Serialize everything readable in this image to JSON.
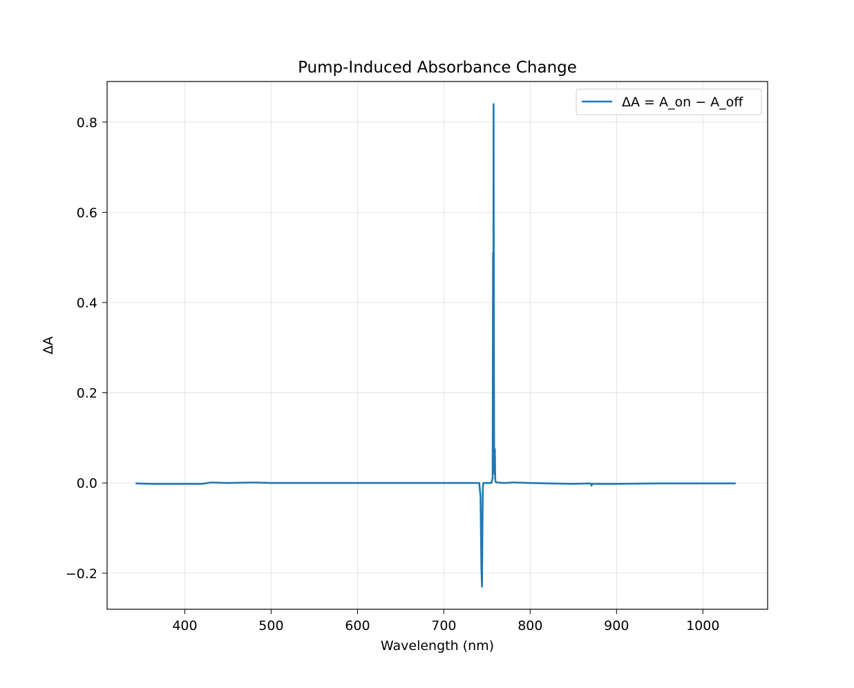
{
  "chart_data": {
    "type": "line",
    "title": "Pump-Induced Absorbance Change",
    "xlabel": "Wavelength (nm)",
    "ylabel": "ΔA",
    "xlim": [
      310,
      1075
    ],
    "ylim": [
      -0.28,
      0.89
    ],
    "x_ticks": [
      400,
      500,
      600,
      700,
      800,
      900,
      1000
    ],
    "x_tick_labels": [
      "400",
      "500",
      "600",
      "700",
      "800",
      "900",
      "1000"
    ],
    "y_ticks": [
      -0.2,
      0.0,
      0.2,
      0.4,
      0.6,
      0.8
    ],
    "y_tick_labels": [
      "−0.2",
      "0.0",
      "0.2",
      "0.4",
      "0.6",
      "0.8"
    ],
    "grid": true,
    "legend_position": "upper right",
    "series": [
      {
        "name": "ΔA = A_on − A_off",
        "color": "#1f77b4",
        "x": [
          343,
          360,
          380,
          400,
          420,
          430,
          450,
          480,
          500,
          550,
          600,
          650,
          700,
          735,
          741,
          742.5,
          743.5,
          744.2,
          744.7,
          745.2,
          745.8,
          746.5,
          748,
          752,
          755,
          756.5,
          757,
          757.3,
          757.6,
          758,
          758.3,
          758.7,
          759.1,
          759.5,
          760,
          762,
          770,
          780,
          800,
          820,
          850,
          870,
          871,
          872,
          900,
          950,
          1000,
          1020,
          1038
        ],
        "y": [
          -0.001,
          -0.002,
          -0.002,
          -0.002,
          -0.002,
          0.001,
          0.0,
          0.001,
          0.0,
          0.0,
          0.0,
          0.0,
          0.0,
          0.0,
          0.0,
          -0.03,
          -0.19,
          -0.23,
          -0.1,
          -0.01,
          0.0,
          0.0,
          0.0,
          0.0,
          0.0,
          0.01,
          0.51,
          0.2,
          0.84,
          0.3,
          0.07,
          0.02,
          0.075,
          0.01,
          0.002,
          0.001,
          0.0,
          0.001,
          0.0,
          -0.001,
          -0.002,
          -0.001,
          -0.006,
          -0.002,
          -0.002,
          -0.001,
          -0.001,
          -0.001,
          -0.001
        ]
      }
    ]
  }
}
